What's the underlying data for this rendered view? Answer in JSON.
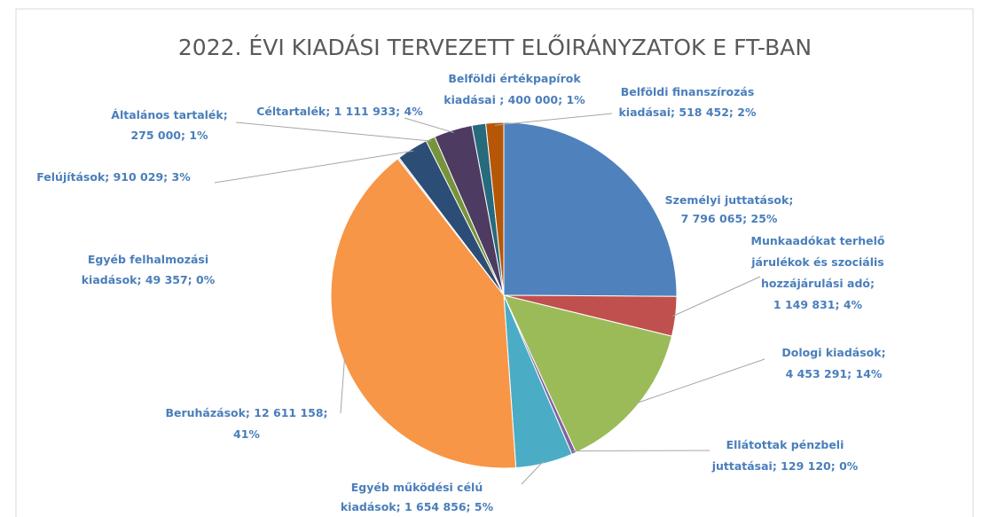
{
  "chart_data": {
    "type": "pie",
    "title": "2022. ÉVI KIADÁSI TERVEZETT ELŐIRÁNYZATOK E FT-BAN",
    "categories": [
      "Személyi juttatások",
      "Munkaadókat terhelő járulékok és szociális hozzájárulási adó",
      "Dologi kiadások",
      "Ellátottak pénzbeli juttatásai",
      "Egyéb működési célú kiadások",
      "Beruházások",
      "Egyéb felhalmozási kiadások",
      "Felújítások",
      "Általános tartalék",
      "Céltartalék",
      "Belföldi értékpapírok kiadásai",
      "Belföldi finanszírozás kiadásai"
    ],
    "values": [
      7796065,
      1149831,
      4453291,
      129120,
      1654856,
      12611158,
      49357,
      910029,
      275000,
      1111933,
      400000,
      518452
    ],
    "value_labels": [
      [
        "Személyi  juttatások;",
        "7 796 065; 25%"
      ],
      [
        "Munkaadókat terhelő",
        "járulékok és szociális",
        "hozzájárulási adó;",
        "1 149 831; 4%"
      ],
      [
        "Dologi  kiadások;",
        "4 453 291; 14%"
      ],
      [
        "Ellátottak pénzbeli",
        "juttatásai; 129 120; 0%"
      ],
      [
        "Egyéb működési célú",
        "kiadások; 1 654 856; 5%"
      ],
      [
        "Beruházások; 12 611 158;",
        "41%"
      ],
      [
        "Egyéb felhalmozási",
        "kiadások; 49 357; 0%"
      ],
      [
        "Felújítások; 910 029; 3%"
      ],
      [
        "Általános tartalék;",
        "275 000; 1%"
      ],
      [
        "Céltartalék; 1 111 933; 4%"
      ],
      [
        "Belföldi értékpapírok",
        "kiadásai ; 400 000; 1%"
      ],
      [
        "Belföldi finanszírozás",
        "kiadásai; 518 452; 2%"
      ]
    ],
    "colors": [
      "#4f81bd",
      "#c0504d",
      "#9bbb59",
      "#8064a2",
      "#4bacc6",
      "#f79646",
      "#c5d9f1",
      "#2c4d75",
      "#77933c",
      "#4d3b62",
      "#276a7c",
      "#b65708"
    ]
  }
}
